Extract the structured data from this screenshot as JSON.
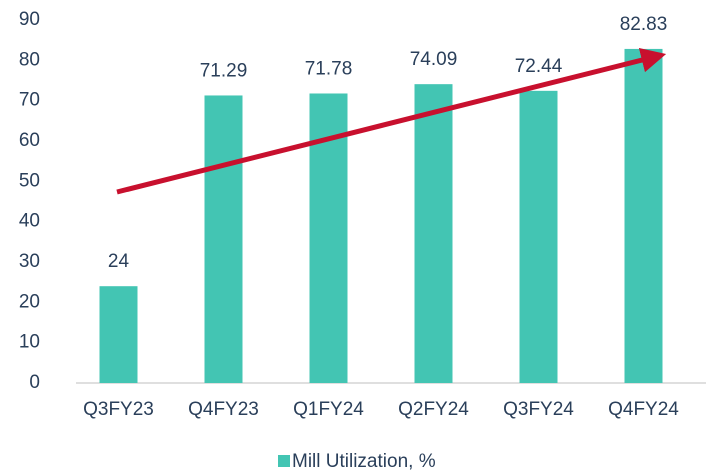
{
  "chart_data": {
    "type": "bar",
    "categories": [
      "Q3FY23",
      "Q4FY23",
      "Q1FY24",
      "Q2FY24",
      "Q3FY24",
      "Q4FY24"
    ],
    "series": [
      {
        "name": "Mill Utilization, %",
        "color": "#43c5b3",
        "values": [
          24,
          71.29,
          71.78,
          74.09,
          72.44,
          82.83
        ]
      }
    ],
    "ylim": [
      0,
      90
    ],
    "yticks": [
      0,
      10,
      20,
      30,
      40,
      50,
      60,
      70,
      80,
      90
    ],
    "grid": false,
    "legend": "bottom"
  }
}
